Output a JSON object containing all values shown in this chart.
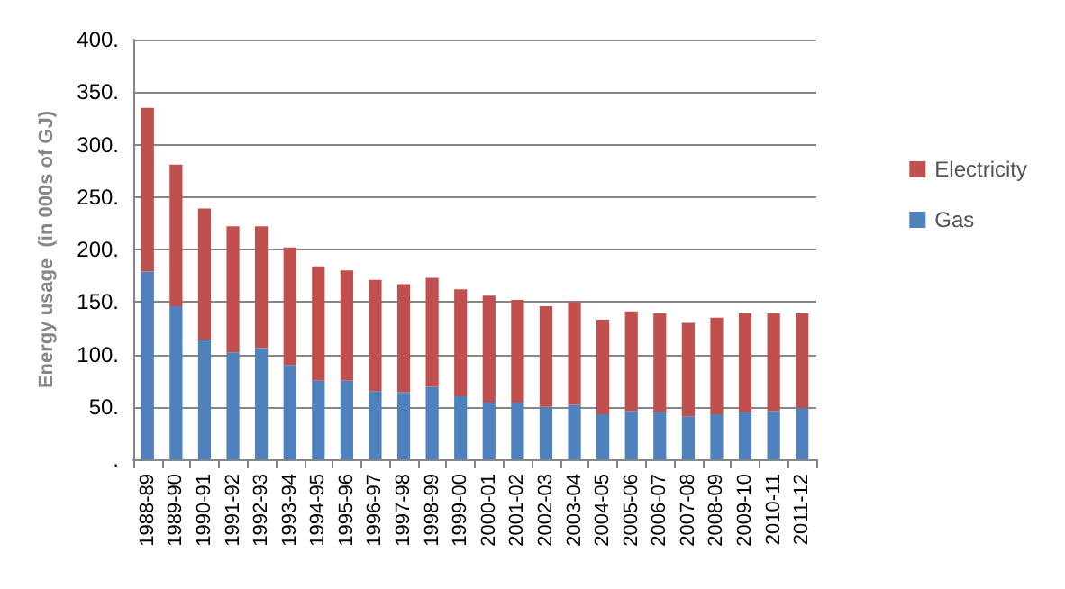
{
  "chart_data": {
    "type": "bar",
    "stacked": true,
    "ylabel": "Energy usage  (in 000s of GJ)",
    "categories": [
      "1988-89",
      "1989-90",
      "1990-91",
      "1991-92",
      "1992-93",
      "1993-94",
      "1994-95",
      "1995-96",
      "1996-97",
      "1997-98",
      "1998-99",
      "1999-00",
      "2000-01",
      "2001-02",
      "2002-03",
      "2003-04",
      "2004-05",
      "2005-06",
      "2006-07",
      "2007-08",
      "2008-09",
      "2009-10",
      "2010-11",
      "2011-12"
    ],
    "series": [
      {
        "name": "Gas",
        "color": "#4f81bd",
        "values": [
          179,
          146,
          114,
          102,
          106,
          90,
          75,
          75,
          65,
          64,
          69,
          60,
          54,
          54,
          50,
          52,
          43,
          46,
          45,
          41,
          43,
          45,
          46,
          49
        ]
      },
      {
        "name": "Electricity",
        "color": "#c0504d",
        "values": [
          156,
          135,
          125,
          120,
          116,
          112,
          109,
          105,
          106,
          103,
          104,
          102,
          102,
          98,
          96,
          98,
          90,
          95,
          94,
          89,
          92,
          94,
          93,
          90
        ]
      }
    ],
    "ylim": [
      0,
      400
    ],
    "yticks": [
      {
        "value": 0,
        "label": "."
      },
      {
        "value": 50,
        "label": "50."
      },
      {
        "value": 100,
        "label": "100."
      },
      {
        "value": 150,
        "label": "150."
      },
      {
        "value": 200,
        "label": "200."
      },
      {
        "value": 250,
        "label": "250."
      },
      {
        "value": 300,
        "label": "300."
      },
      {
        "value": 350,
        "label": "350."
      },
      {
        "value": 400,
        "label": "400."
      }
    ],
    "grid": "y",
    "legend": "right"
  }
}
